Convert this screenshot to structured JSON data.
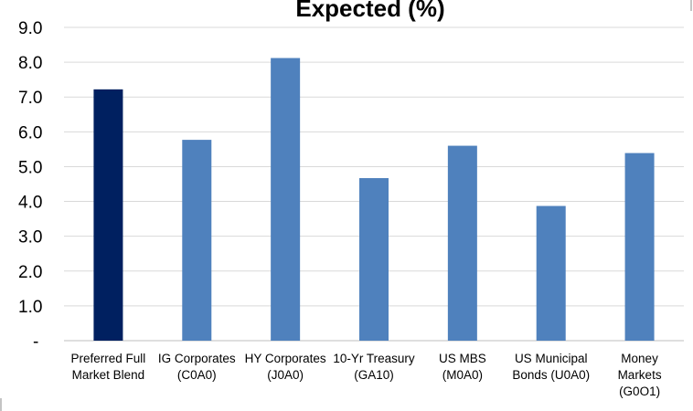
{
  "chart_data": {
    "type": "bar",
    "title": "Expected (%)",
    "xlabel": "",
    "ylabel": "",
    "ylim": [
      0,
      9
    ],
    "yticks": [
      "-",
      "1.0",
      "2.0",
      "3.0",
      "4.0",
      "5.0",
      "6.0",
      "7.0",
      "8.0",
      "9.0"
    ],
    "grid": true,
    "legend": "none",
    "categories": [
      [
        "Preferred Full",
        "Market Blend"
      ],
      [
        "IG Corporates",
        "(C0A0)"
      ],
      [
        "HY Corporates",
        "(J0A0)"
      ],
      [
        "10-Yr Treasury",
        "(GA10)"
      ],
      [
        "US MBS",
        "(M0A0)"
      ],
      [
        "US Municipal",
        "Bonds (U0A0)"
      ],
      [
        "Money",
        "Markets",
        "(G0O1)"
      ]
    ],
    "values": [
      7.22,
      5.77,
      8.12,
      4.67,
      5.6,
      3.87,
      5.39
    ],
    "bar_colors": [
      "#002060",
      "#4F81BD",
      "#4F81BD",
      "#4F81BD",
      "#4F81BD",
      "#4F81BD",
      "#4F81BD"
    ],
    "colors": {
      "grid": "#D9D9D9",
      "axis": "#BFBFBF"
    }
  }
}
